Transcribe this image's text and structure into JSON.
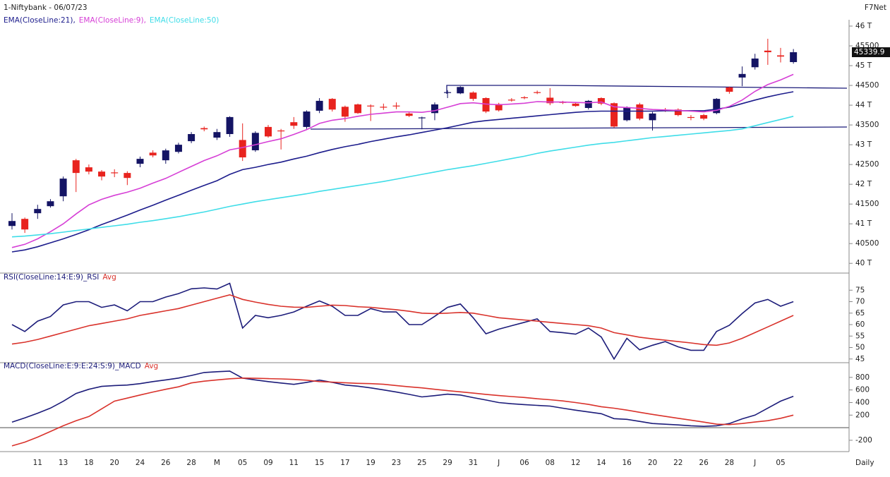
{
  "brand": "F7Net",
  "interval": "Daily",
  "chart_data": [
    {
      "type": "candlestick",
      "title": "1-Niftybank - 06/07/23",
      "up_color": "#141464",
      "down_color": "#e8231e",
      "categories": [
        null,
        null,
        "11",
        null,
        "13",
        null,
        "18",
        null,
        "20",
        null,
        "24",
        null,
        "26",
        null,
        "28",
        null,
        "M",
        null,
        "05",
        null,
        "09",
        null,
        "11",
        null,
        "15",
        null,
        "17",
        null,
        "19",
        null,
        "23",
        null,
        "25",
        null,
        "29",
        null,
        "31",
        null,
        "J",
        null,
        "06",
        null,
        "08",
        null,
        "12",
        null,
        "14",
        null,
        "16",
        null,
        "20",
        null,
        "22",
        null,
        "26",
        null,
        "28",
        null,
        "J",
        null,
        "05",
        null
      ],
      "open": [
        40946,
        41125,
        41268,
        41446,
        41696,
        42607,
        42429,
        42321,
        42300,
        42286,
        42518,
        42800,
        42607,
        42820,
        43090,
        43420,
        43180,
        43270,
        43120,
        42860,
        43450,
        43360,
        43570,
        43450,
        43860,
        44160,
        43960,
        44020,
        43990,
        43960,
        43990,
        43790,
        43670,
        43800,
        44310,
        44300,
        44320,
        44180,
        44030,
        44140,
        44200,
        44330,
        44190,
        44080,
        44040,
        43930,
        44180,
        44050,
        43620,
        44020,
        43620,
        43880,
        43890,
        43700,
        43750,
        43800,
        44450,
        44700,
        44960,
        45380,
        45260,
        45090
      ],
      "high": [
        41268,
        41160,
        41482,
        41625,
        42196,
        42643,
        42500,
        42360,
        42380,
        42330,
        42700,
        42860,
        42900,
        43050,
        43320,
        43460,
        43400,
        43720,
        43540,
        43340,
        43500,
        43400,
        43700,
        43870,
        44180,
        44180,
        43990,
        44040,
        44020,
        44040,
        44070,
        43830,
        43710,
        44070,
        44380,
        44480,
        44350,
        44200,
        44060,
        44180,
        44230,
        44370,
        44430,
        44110,
        44070,
        44130,
        44200,
        44070,
        43970,
        44060,
        43830,
        43930,
        43920,
        43750,
        43780,
        44180,
        44470,
        44980,
        45300,
        45680,
        45450,
        45420
      ],
      "low": [
        40857,
        40770,
        41125,
        41410,
        41571,
        41804,
        42250,
        42100,
        42180,
        41980,
        42430,
        42680,
        42520,
        42780,
        43040,
        43340,
        43120,
        43200,
        42590,
        42820,
        43180,
        42880,
        43400,
        43400,
        43800,
        43840,
        43580,
        43780,
        43600,
        43880,
        43900,
        43700,
        43390,
        43620,
        44180,
        44280,
        44110,
        43800,
        43840,
        44090,
        44150,
        44280,
        44000,
        44030,
        43960,
        43890,
        44000,
        43430,
        43590,
        43620,
        43360,
        43830,
        43720,
        43620,
        43620,
        43770,
        44290,
        44480,
        44900,
        45020,
        45080,
        45050
      ],
      "close": [
        41071,
        40857,
        41375,
        41571,
        42143,
        42286,
        42321,
        42196,
        42290,
        42160,
        42643,
        42730,
        42857,
        43000,
        43270,
        43390,
        43320,
        43700,
        42680,
        43300,
        43210,
        43340,
        43480,
        43840,
        44110,
        43890,
        43710,
        43800,
        43980,
        43940,
        43980,
        43730,
        43690,
        44020,
        44330,
        44460,
        44160,
        43840,
        43870,
        44130,
        44190,
        44310,
        44050,
        44070,
        43980,
        44110,
        44040,
        43460,
        43950,
        43660,
        43790,
        43870,
        43750,
        43690,
        43660,
        44160,
        44340,
        44790,
        45180,
        45340,
        45230,
        45339.9
      ],
      "series": [
        {
          "name": "EMA(CloseLine:21),",
          "color": "#1c1c8c",
          "values": [
            40290,
            40340,
            40420,
            40520,
            40620,
            40730,
            40850,
            40980,
            41100,
            41220,
            41350,
            41470,
            41600,
            41720,
            41850,
            41970,
            42090,
            42250,
            42370,
            42430,
            42500,
            42560,
            42640,
            42710,
            42800,
            42880,
            42950,
            43010,
            43080,
            43140,
            43200,
            43250,
            43310,
            43370,
            43430,
            43500,
            43570,
            43610,
            43640,
            43670,
            43700,
            43730,
            43760,
            43790,
            43820,
            43840,
            43850,
            43850,
            43850,
            43850,
            43850,
            43860,
            43860,
            43860,
            43860,
            43900,
            43950,
            44040,
            44130,
            44210,
            44280,
            44340
          ]
        },
        {
          "name": "EMA(CloseLine:9),",
          "color": "#d63fd6",
          "values": [
            40400,
            40480,
            40620,
            40800,
            41000,
            41250,
            41480,
            41620,
            41720,
            41800,
            41900,
            42030,
            42150,
            42300,
            42450,
            42600,
            42720,
            42870,
            42930,
            43000,
            43080,
            43150,
            43260,
            43380,
            43540,
            43620,
            43660,
            43720,
            43770,
            43800,
            43830,
            43830,
            43820,
            43860,
            43950,
            44040,
            44060,
            44030,
            44010,
            44030,
            44050,
            44090,
            44080,
            44080,
            44070,
            44060,
            44080,
            43960,
            43940,
            43920,
            43890,
            43880,
            43870,
            43850,
            43830,
            43870,
            43970,
            44130,
            44350,
            44520,
            44640,
            44780
          ]
        },
        {
          "name": "EMA(CloseLine:50)",
          "color": "#3fdde8",
          "values": [
            40670,
            40690,
            40720,
            40750,
            40790,
            40830,
            40870,
            40910,
            40950,
            40990,
            41040,
            41080,
            41130,
            41180,
            41240,
            41300,
            41370,
            41440,
            41500,
            41560,
            41610,
            41660,
            41710,
            41760,
            41820,
            41870,
            41920,
            41970,
            42020,
            42070,
            42130,
            42190,
            42250,
            42310,
            42370,
            42420,
            42470,
            42530,
            42590,
            42650,
            42710,
            42780,
            42840,
            42890,
            42940,
            42990,
            43030,
            43060,
            43100,
            43140,
            43180,
            43210,
            43240,
            43270,
            43300,
            43330,
            43360,
            43400,
            43480,
            43560,
            43640,
            43720
          ]
        }
      ],
      "ylim": [
        39790,
        46125
      ],
      "yticks": [
        {
          "value": 46000,
          "label": "46 T"
        },
        45500,
        {
          "value": 45000,
          "label": "45 T"
        },
        44500,
        {
          "value": 44000,
          "label": "44 T"
        },
        43500,
        {
          "value": 43000,
          "label": "43 T"
        },
        42500,
        {
          "value": 42000,
          "label": "42 T"
        },
        41500,
        {
          "value": 41000,
          "label": "41 T"
        },
        40500,
        {
          "value": 40000,
          "label": "40 T"
        }
      ]
    },
    {
      "type": "line",
      "series": [
        {
          "name": "RSI(CloseLine:14:E:9)_RSI",
          "color": "#1c1c7a",
          "values": [
            60,
            57,
            61.5,
            63.5,
            68.6,
            70,
            70,
            67.5,
            68.6,
            66,
            70,
            70,
            72,
            73.5,
            75.6,
            76,
            75.5,
            78,
            58.5,
            64,
            63,
            64,
            65.5,
            68,
            70.3,
            68,
            64,
            64,
            67,
            65.5,
            65.5,
            60,
            60,
            63.6,
            67.5,
            69,
            63,
            56,
            58,
            59.5,
            61,
            62.5,
            57,
            56.5,
            55.8,
            58.5,
            54.6,
            45,
            54,
            49,
            51,
            52.6,
            50.3,
            48.8,
            48.8,
            57,
            59.7,
            64.8,
            69.4,
            71,
            68,
            70
          ]
        },
        {
          "name": "Avg",
          "color": "#d9322b",
          "values": [
            51.5,
            52.3,
            53.5,
            55,
            56.5,
            58,
            59.5,
            60.5,
            61.5,
            62.5,
            64,
            65,
            66,
            67,
            68.5,
            70,
            71.5,
            73,
            71,
            69.8,
            68.8,
            68,
            67.6,
            67.5,
            68,
            68.5,
            68.3,
            67.8,
            67.5,
            67,
            66.5,
            65.8,
            65,
            64.8,
            65,
            65.3,
            65,
            64,
            63,
            62.5,
            62,
            61.5,
            61,
            60.5,
            60,
            59.5,
            58.5,
            56.5,
            55.5,
            54.5,
            53.8,
            53.2,
            52.6,
            52,
            51.3,
            51,
            52,
            54,
            56.5,
            59,
            61.5,
            64
          ]
        }
      ],
      "ylim": [
        44,
        80
      ],
      "yticks": [
        45,
        50,
        55,
        60,
        65,
        70,
        75
      ]
    },
    {
      "type": "line",
      "series": [
        {
          "name": "MACD(CloseLine:E:9:E:24:S:9)_MACD",
          "color": "#1c1c7a",
          "values": [
            89,
            156,
            230,
            311,
            420,
            544,
            610,
            656,
            670,
            678,
            700,
            733,
            760,
            789,
            830,
            878,
            890,
            900,
            789,
            760,
            733,
            710,
            689,
            720,
            756,
            720,
            678,
            660,
            633,
            600,
            567,
            530,
            489,
            510,
            533,
            520,
            478,
            440,
            400,
            380,
            367,
            355,
            344,
            310,
            278,
            250,
            222,
            144,
            133,
            100,
            67,
            55,
            44,
            30,
            22,
            30,
            67,
            140,
            200,
            311,
            422,
            500
          ]
        },
        {
          "name": "Avg",
          "color": "#d9322b",
          "values": [
            -289,
            -230,
            -150,
            -60,
            30,
            110,
            178,
            300,
            422,
            470,
            520,
            567,
            610,
            650,
            711,
            740,
            760,
            778,
            789,
            785,
            780,
            775,
            767,
            755,
            733,
            725,
            715,
            705,
            700,
            690,
            670,
            650,
            633,
            610,
            589,
            570,
            550,
            530,
            511,
            495,
            480,
            460,
            444,
            425,
            400,
            370,
            333,
            310,
            280,
            245,
            211,
            180,
            150,
            120,
            89,
            56,
            50,
            67,
            90,
            111,
            150,
            200
          ]
        }
      ],
      "ylim": [
        -380,
        910
      ],
      "yticks": [
        -200,
        200,
        400,
        600,
        800
      ]
    }
  ]
}
